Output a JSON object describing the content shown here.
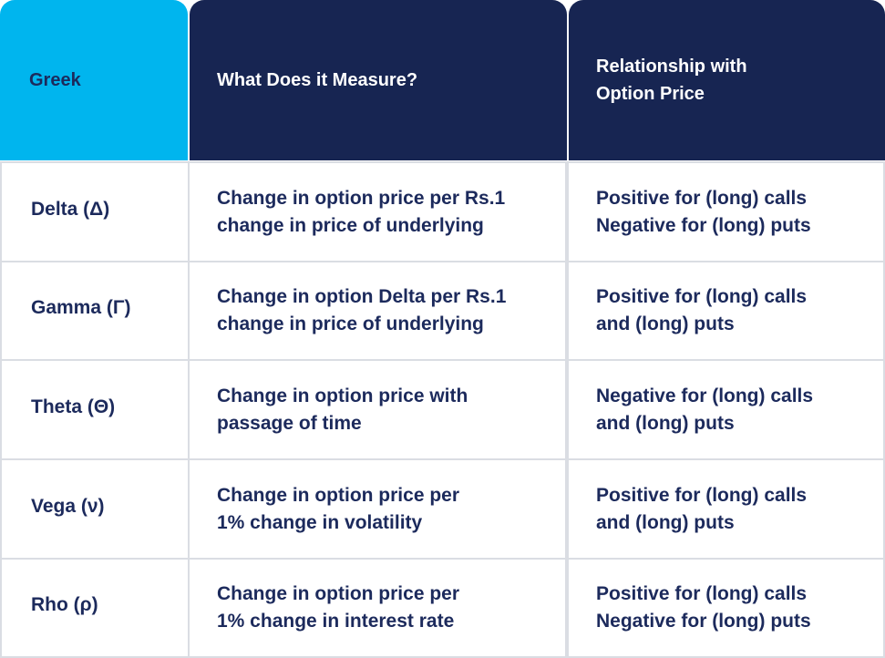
{
  "table": {
    "header": [
      "Greek",
      "What Does it Measure?",
      [
        "Relationship with",
        "Option Price"
      ]
    ],
    "rows": [
      [
        "Delta (Δ)",
        [
          "Change in option price per Rs.1",
          "change in price of underlying"
        ],
        [
          "Positive for (long) calls",
          "Negative for (long) puts"
        ]
      ],
      [
        "Gamma (Γ)",
        [
          "Change in option Delta per Rs.1",
          "change in price of underlying"
        ],
        [
          "Positive for (long) calls",
          "and (long) puts"
        ]
      ],
      [
        "Theta (Θ)",
        [
          "Change in option price with",
          "passage of time"
        ],
        [
          "Negative for (long) calls",
          "and (long) puts"
        ]
      ],
      [
        "Vega (ν)",
        [
          "Change in option price per",
          "1% change in volatility"
        ],
        [
          "Positive for (long) calls",
          "and (long) puts"
        ]
      ],
      [
        "Rho (ρ)",
        [
          "Change in option price per",
          "1% change in interest rate"
        ],
        [
          "Positive for (long) calls",
          "Negative for (long) puts"
        ]
      ]
    ]
  }
}
